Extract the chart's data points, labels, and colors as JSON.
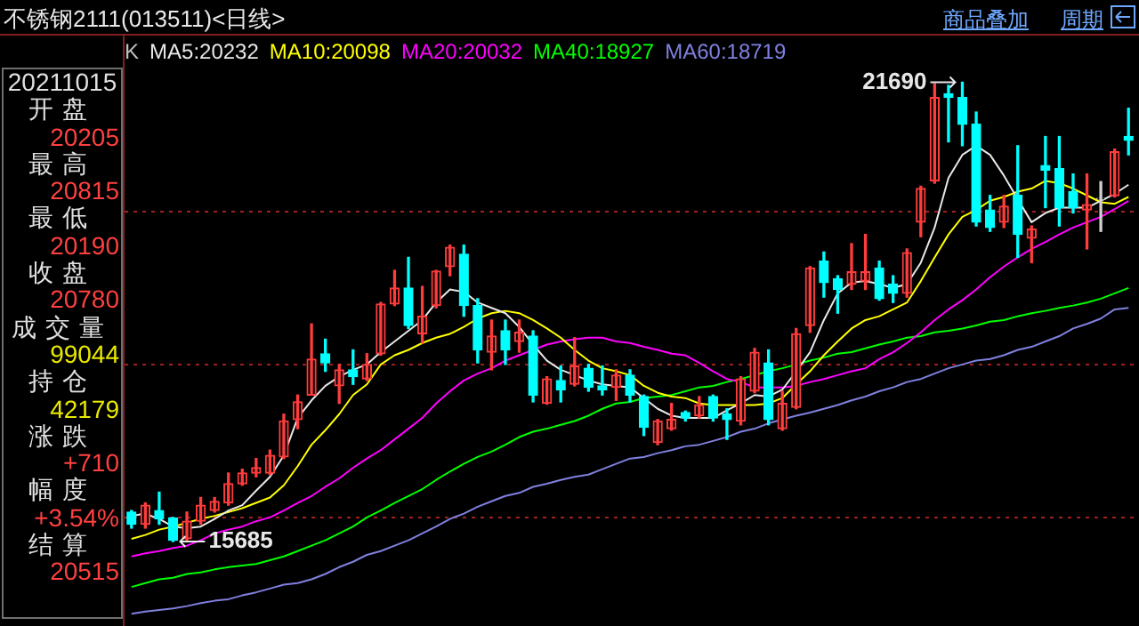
{
  "chart_data": {
    "type": "candlestick",
    "title": "不锈钢2111(013511)<日线>",
    "categories": [
      null,
      null,
      null,
      null,
      null,
      null,
      null,
      null,
      null,
      null,
      null,
      null,
      null,
      null,
      null,
      null,
      null,
      null,
      null,
      null,
      null,
      null,
      null,
      null,
      null,
      null,
      null,
      null,
      null,
      null,
      null,
      null,
      null,
      null,
      null,
      null,
      null,
      null,
      null,
      null,
      null,
      null,
      null,
      null,
      null,
      null,
      null,
      null,
      null,
      null,
      null,
      null,
      null,
      null,
      null,
      null,
      null,
      null,
      null,
      null,
      null,
      null,
      null,
      null,
      null,
      null,
      null,
      null,
      null,
      null,
      null,
      null,
      null
    ],
    "ohlc": [
      [
        16070,
        16090,
        15860,
        15910
      ],
      [
        15910,
        16190,
        15860,
        16160
      ],
      [
        16090,
        16330,
        15910,
        15980
      ],
      [
        15990,
        16000,
        15685,
        15700
      ],
      [
        15720,
        16070,
        15700,
        15950
      ],
      [
        15950,
        16260,
        15910,
        16160
      ],
      [
        16090,
        16260,
        16070,
        16210
      ],
      [
        16190,
        16580,
        16160,
        16440
      ],
      [
        16440,
        16630,
        16420,
        16580
      ],
      [
        16580,
        16770,
        16530,
        16650
      ],
      [
        16580,
        16880,
        16560,
        16810
      ],
      [
        16790,
        17350,
        16770,
        17260
      ],
      [
        17280,
        17600,
        17160,
        17510
      ],
      [
        17600,
        18530,
        17600,
        18070
      ],
      [
        18140,
        18330,
        17910,
        18020
      ],
      [
        17720,
        18000,
        17490,
        17930
      ],
      [
        17930,
        18190,
        17740,
        17840
      ],
      [
        17810,
        18140,
        17790,
        18000
      ],
      [
        18140,
        18810,
        18120,
        18790
      ],
      [
        18790,
        19230,
        18770,
        19000
      ],
      [
        19000,
        19400,
        18470,
        18510
      ],
      [
        18400,
        19020,
        18280,
        18630
      ],
      [
        18770,
        19230,
        18740,
        19220
      ],
      [
        19280,
        19560,
        19160,
        19530
      ],
      [
        19440,
        19560,
        18630,
        18770
      ],
      [
        18770,
        18860,
        18020,
        18190
      ],
      [
        18160,
        18580,
        17930,
        18370
      ],
      [
        18440,
        18580,
        18000,
        18190
      ],
      [
        18300,
        18580,
        18160,
        18420
      ],
      [
        18370,
        18440,
        17510,
        17600
      ],
      [
        17490,
        17840,
        17480,
        17810
      ],
      [
        17790,
        17980,
        17510,
        17670
      ],
      [
        17740,
        18350,
        17720,
        17980
      ],
      [
        17950,
        18000,
        17650,
        17700
      ],
      [
        17720,
        17980,
        17600,
        17670
      ],
      [
        17700,
        17930,
        17530,
        17860
      ],
      [
        17860,
        17930,
        17510,
        17600
      ],
      [
        17580,
        17600,
        17070,
        17180
      ],
      [
        16980,
        17280,
        16950,
        17260
      ],
      [
        17160,
        17490,
        17140,
        17280
      ],
      [
        17370,
        17390,
        17260,
        17300
      ],
      [
        17330,
        17580,
        17300,
        17470
      ],
      [
        17580,
        17600,
        17260,
        17300
      ],
      [
        17350,
        17420,
        17020,
        17280
      ],
      [
        17260,
        17840,
        17210,
        17810
      ],
      [
        17650,
        18210,
        17630,
        18160
      ],
      [
        18020,
        18190,
        17210,
        17280
      ],
      [
        17160,
        17650,
        17140,
        17490
      ],
      [
        17440,
        18470,
        17420,
        18400
      ],
      [
        18510,
        19280,
        18420,
        19260
      ],
      [
        19350,
        19470,
        18880,
        19070
      ],
      [
        19120,
        19160,
        18670,
        18980
      ],
      [
        19050,
        19580,
        18980,
        19210
      ],
      [
        19090,
        19700,
        18980,
        19210
      ],
      [
        19260,
        19350,
        18840,
        18860
      ],
      [
        19050,
        19160,
        18810,
        18930
      ],
      [
        18930,
        19510,
        18880,
        19460
      ],
      [
        19860,
        20330,
        19670,
        20300
      ],
      [
        20400,
        21670,
        20370,
        21490
      ],
      [
        21540,
        21650,
        20910,
        21490
      ],
      [
        21490,
        21690,
        20860,
        21140
      ],
      [
        21140,
        21300,
        19810,
        19860
      ],
      [
        20020,
        20210,
        19740,
        19790
      ],
      [
        19860,
        20210,
        19790,
        20070
      ],
      [
        20210,
        20860,
        19400,
        19700
      ],
      [
        19650,
        19810,
        19330,
        19770
      ],
      [
        20600,
        20980,
        20050,
        20540
      ],
      [
        20560,
        20980,
        19810,
        20050
      ],
      [
        20260,
        20490,
        19980,
        20050
      ],
      [
        20020,
        20490,
        19510,
        20090
      ],
      [
        20160,
        20390,
        19740,
        20170
      ],
      [
        20205,
        20815,
        20190,
        20780
      ],
      [
        20980,
        21350,
        20740,
        20930
      ]
    ],
    "colors": [
      "#00ffff",
      "#ff3c3c",
      "#00ffff",
      "#00ffff",
      "#ff3c3c",
      "#ff3c3c",
      "#ff3c3c",
      "#ff3c3c",
      "#ff3c3c",
      "#ff3c3c",
      "#ff3c3c",
      "#ff3c3c",
      "#ff3c3c",
      "#ff3c3c",
      "#00ffff",
      "#ff3c3c",
      "#00ffff",
      "#ff3c3c",
      "#ff3c3c",
      "#ff3c3c",
      "#00ffff",
      "#ff3c3c",
      "#ff3c3c",
      "#ff3c3c",
      "#00ffff",
      "#00ffff",
      "#ff3c3c",
      "#00ffff",
      "#ff3c3c",
      "#00ffff",
      "#ff3c3c",
      "#00ffff",
      "#ff3c3c",
      "#00ffff",
      "#00ffff",
      "#ff3c3c",
      "#00ffff",
      "#00ffff",
      "#ff3c3c",
      "#ff3c3c",
      "#00ffff",
      "#ff3c3c",
      "#00ffff",
      "#00ffff",
      "#ff3c3c",
      "#ff3c3c",
      "#00ffff",
      "#ff3c3c",
      "#ff3c3c",
      "#ff3c3c",
      "#00ffff",
      "#00ffff",
      "#ff3c3c",
      "#ff3c3c",
      "#00ffff",
      "#00ffff",
      "#ff3c3c",
      "#ff3c3c",
      "#ff3c3c",
      "#00ffff",
      "#00ffff",
      "#00ffff",
      "#00ffff",
      "#ff3c3c",
      "#00ffff",
      "#ff3c3c",
      "#00ffff",
      "#00ffff",
      "#00ffff",
      "#ff3c3c",
      "#d0d0d0",
      "#ff3c3c",
      "#00ffff"
    ],
    "series": [
      {
        "name": "MA5:20232",
        "type": "line",
        "color": "#e8e8e8",
        "values": [
          16020,
          16050,
          15980,
          15880,
          15860,
          15880,
          15980,
          16090,
          16160,
          16350,
          16530,
          16810,
          17300,
          17530,
          17720,
          17840,
          17930,
          18000,
          18160,
          18300,
          18440,
          18580,
          18810,
          18980,
          18950,
          18810,
          18740,
          18670,
          18490,
          18260,
          18050,
          17930,
          17860,
          17790,
          17740,
          17720,
          17700,
          17560,
          17420,
          17330,
          17300,
          17300,
          17300,
          17400,
          17490,
          17600,
          17580,
          17670,
          17910,
          18160,
          18580,
          18930,
          19070,
          19090,
          19050,
          19000,
          19050,
          19330,
          19790,
          20440,
          20740,
          20860,
          20740,
          20470,
          20160,
          19860,
          19980,
          20050,
          20050,
          20050,
          20140,
          20230,
          20350
        ]
      },
      {
        "name": "MA10:20098",
        "type": "line",
        "color": "#ffff00",
        "values": [
          15720,
          15770,
          15840,
          15880,
          15930,
          15980,
          16020,
          16070,
          16120,
          16190,
          16260,
          16420,
          16670,
          16950,
          17140,
          17350,
          17600,
          17740,
          18000,
          18120,
          18190,
          18280,
          18350,
          18400,
          18490,
          18600,
          18670,
          18700,
          18670,
          18580,
          18470,
          18350,
          18190,
          18050,
          17950,
          17910,
          17860,
          17720,
          17630,
          17580,
          17560,
          17490,
          17470,
          17470,
          17470,
          17470,
          17490,
          17560,
          17740,
          17910,
          18120,
          18300,
          18470,
          18580,
          18630,
          18720,
          18810,
          19090,
          19400,
          19700,
          19930,
          20020,
          20140,
          20190,
          20260,
          20300,
          20400,
          20370,
          20300,
          20210,
          20120,
          20100,
          20190
        ]
      },
      {
        "name": "MA20:20032",
        "type": "line",
        "color": "#ff00ff",
        "values": [
          15490,
          15530,
          15560,
          15600,
          15630,
          15700,
          15790,
          15840,
          15880,
          15950,
          16000,
          16090,
          16190,
          16280,
          16400,
          16510,
          16650,
          16770,
          16880,
          17020,
          17160,
          17300,
          17490,
          17650,
          17790,
          17880,
          17950,
          18050,
          18120,
          18190,
          18260,
          18300,
          18330,
          18350,
          18350,
          18300,
          18280,
          18230,
          18190,
          18140,
          18120,
          18020,
          17910,
          17810,
          17770,
          17700,
          17700,
          17700,
          17720,
          17770,
          17810,
          17860,
          17910,
          17950,
          18070,
          18160,
          18280,
          18420,
          18580,
          18720,
          18840,
          18980,
          19140,
          19280,
          19400,
          19510,
          19600,
          19700,
          19790,
          19860,
          19930,
          20030,
          20140
        ]
      },
      {
        "name": "MA40:18927",
        "type": "line",
        "color": "#00ff00",
        "values": [
          15090,
          15140,
          15190,
          15210,
          15260,
          15280,
          15320,
          15350,
          15370,
          15390,
          15440,
          15490,
          15560,
          15630,
          15700,
          15790,
          15880,
          16000,
          16090,
          16190,
          16280,
          16370,
          16490,
          16600,
          16700,
          16790,
          16860,
          16950,
          17050,
          17120,
          17160,
          17210,
          17260,
          17330,
          17420,
          17490,
          17510,
          17560,
          17580,
          17600,
          17650,
          17700,
          17720,
          17770,
          17810,
          17860,
          17910,
          17950,
          18000,
          18050,
          18090,
          18140,
          18160,
          18210,
          18260,
          18300,
          18350,
          18370,
          18420,
          18440,
          18470,
          18510,
          18560,
          18580,
          18630,
          18670,
          18700,
          18740,
          18770,
          18810,
          18860,
          18930,
          19000
        ]
      },
      {
        "name": "MA60:18719",
        "type": "line",
        "color": "#8080e0",
        "values": [
          14740,
          14770,
          14790,
          14810,
          14840,
          14880,
          14910,
          14930,
          14980,
          15020,
          15070,
          15120,
          15140,
          15190,
          15260,
          15350,
          15420,
          15510,
          15560,
          15630,
          15700,
          15790,
          15880,
          15980,
          16050,
          16140,
          16210,
          16280,
          16320,
          16400,
          16440,
          16490,
          16530,
          16560,
          16630,
          16700,
          16770,
          16790,
          16840,
          16880,
          16930,
          16950,
          17000,
          17050,
          17120,
          17160,
          17230,
          17280,
          17330,
          17370,
          17420,
          17470,
          17530,
          17580,
          17650,
          17700,
          17770,
          17810,
          17880,
          17950,
          18000,
          18050,
          18070,
          18120,
          18190,
          18230,
          18300,
          18370,
          18470,
          18530,
          18600,
          18720,
          18740
        ]
      }
    ],
    "ylim": [
      14580,
      22300
    ],
    "yticks": [
      {
        "value": 16000,
        "label": null
      },
      {
        "value": 18000,
        "label": null
      },
      {
        "value": 20000,
        "label": null
      }
    ],
    "grid": "y",
    "legend": "top left",
    "marker": "none",
    "annotations": [
      "商品叠加",
      "周期",
      "K",
      "20211015",
      "开盘",
      "20205",
      "最高",
      "20815",
      "最低",
      "20190",
      "收盘",
      "20780",
      "成交量",
      "99044",
      "持仓",
      "42179",
      "涨跌",
      "+710",
      "幅度",
      "+3.54%",
      "结算",
      "20515",
      "21690",
      "15685"
    ]
  }
}
